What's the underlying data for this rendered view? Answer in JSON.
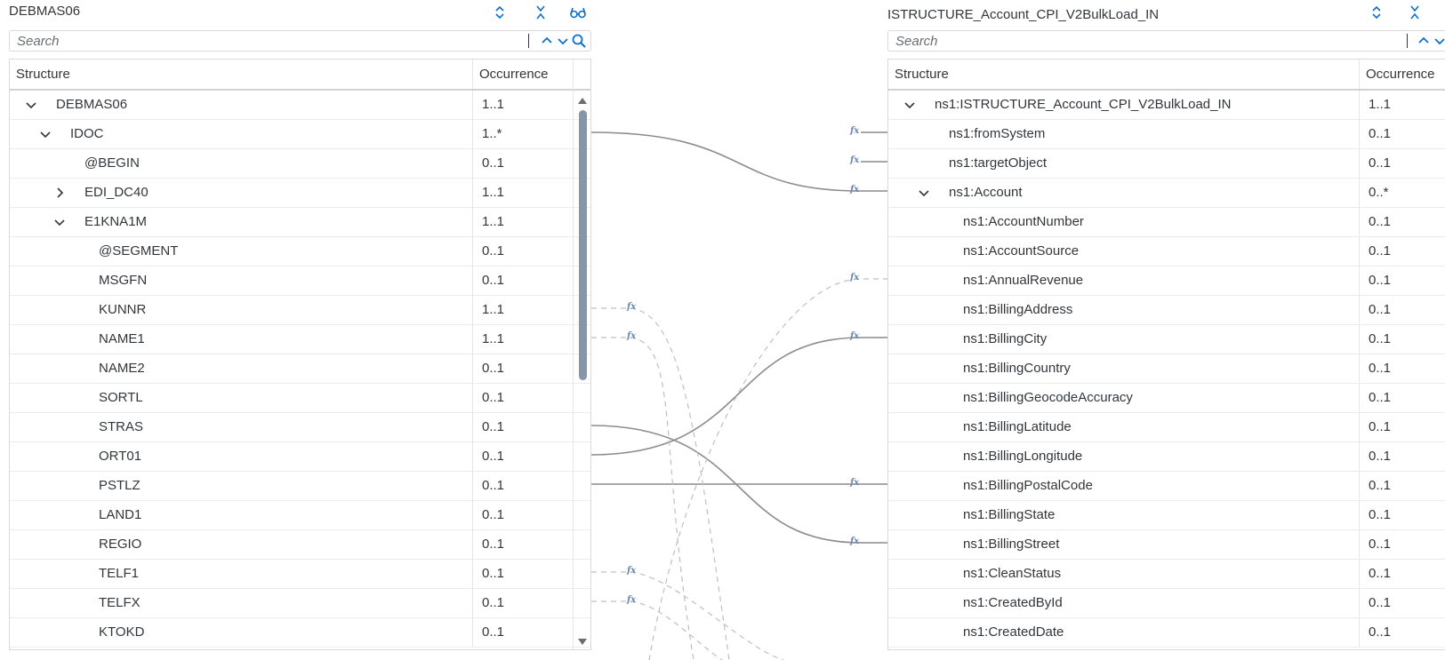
{
  "left": {
    "title": "DEBMAS06",
    "search_placeholder": "Search",
    "columns": {
      "structure": "Structure",
      "occurrence": "Occurrence"
    },
    "rows": [
      {
        "label": "DEBMAS06",
        "occ": "1..1",
        "level": 0,
        "chevron": "down"
      },
      {
        "label": "IDOC",
        "occ": "1..*",
        "level": 1,
        "chevron": "down"
      },
      {
        "label": "@BEGIN",
        "occ": "0..1",
        "level": 2,
        "chevron": ""
      },
      {
        "label": "EDI_DC40",
        "occ": "1..1",
        "level": 2,
        "chevron": "right"
      },
      {
        "label": "E1KNA1M",
        "occ": "1..1",
        "level": 2,
        "chevron": "down"
      },
      {
        "label": "@SEGMENT",
        "occ": "0..1",
        "level": 3,
        "chevron": ""
      },
      {
        "label": "MSGFN",
        "occ": "0..1",
        "level": 3,
        "chevron": ""
      },
      {
        "label": "KUNNR",
        "occ": "1..1",
        "level": 3,
        "chevron": ""
      },
      {
        "label": "NAME1",
        "occ": "1..1",
        "level": 3,
        "chevron": ""
      },
      {
        "label": "NAME2",
        "occ": "0..1",
        "level": 3,
        "chevron": ""
      },
      {
        "label": "SORTL",
        "occ": "0..1",
        "level": 3,
        "chevron": ""
      },
      {
        "label": "STRAS",
        "occ": "0..1",
        "level": 3,
        "chevron": ""
      },
      {
        "label": "ORT01",
        "occ": "0..1",
        "level": 3,
        "chevron": ""
      },
      {
        "label": "PSTLZ",
        "occ": "0..1",
        "level": 3,
        "chevron": ""
      },
      {
        "label": "LAND1",
        "occ": "0..1",
        "level": 3,
        "chevron": ""
      },
      {
        "label": "REGIO",
        "occ": "0..1",
        "level": 3,
        "chevron": ""
      },
      {
        "label": "TELF1",
        "occ": "0..1",
        "level": 3,
        "chevron": ""
      },
      {
        "label": "TELFX",
        "occ": "0..1",
        "level": 3,
        "chevron": ""
      },
      {
        "label": "KTOKD",
        "occ": "0..1",
        "level": 3,
        "chevron": ""
      }
    ]
  },
  "right": {
    "title": "ISTRUCTURE_Account_CPI_V2BulkLoad_IN",
    "search_placeholder": "Search",
    "columns": {
      "structure": "Structure",
      "occurrence": "Occurrence"
    },
    "rows": [
      {
        "label": "ns1:ISTRUCTURE_Account_CPI_V2BulkLoad_IN",
        "occ": "1..1",
        "level": 0,
        "chevron": "down"
      },
      {
        "label": "ns1:fromSystem",
        "occ": "0..1",
        "level": 1,
        "chevron": ""
      },
      {
        "label": "ns1:targetObject",
        "occ": "0..1",
        "level": 1,
        "chevron": ""
      },
      {
        "label": "ns1:Account",
        "occ": "0..*",
        "level": 1,
        "chevron": "down"
      },
      {
        "label": "ns1:AccountNumber",
        "occ": "0..1",
        "level": 2,
        "chevron": ""
      },
      {
        "label": "ns1:AccountSource",
        "occ": "0..1",
        "level": 2,
        "chevron": ""
      },
      {
        "label": "ns1:AnnualRevenue",
        "occ": "0..1",
        "level": 2,
        "chevron": ""
      },
      {
        "label": "ns1:BillingAddress",
        "occ": "0..1",
        "level": 2,
        "chevron": ""
      },
      {
        "label": "ns1:BillingCity",
        "occ": "0..1",
        "level": 2,
        "chevron": ""
      },
      {
        "label": "ns1:BillingCountry",
        "occ": "0..1",
        "level": 2,
        "chevron": ""
      },
      {
        "label": "ns1:BillingGeocodeAccuracy",
        "occ": "0..1",
        "level": 2,
        "chevron": ""
      },
      {
        "label": "ns1:BillingLatitude",
        "occ": "0..1",
        "level": 2,
        "chevron": ""
      },
      {
        "label": "ns1:BillingLongitude",
        "occ": "0..1",
        "level": 2,
        "chevron": ""
      },
      {
        "label": "ns1:BillingPostalCode",
        "occ": "0..1",
        "level": 2,
        "chevron": ""
      },
      {
        "label": "ns1:BillingState",
        "occ": "0..1",
        "level": 2,
        "chevron": ""
      },
      {
        "label": "ns1:BillingStreet",
        "occ": "0..1",
        "level": 2,
        "chevron": ""
      },
      {
        "label": "ns1:CleanStatus",
        "occ": "0..1",
        "level": 2,
        "chevron": ""
      },
      {
        "label": "ns1:CreatedById",
        "occ": "0..1",
        "level": 2,
        "chevron": ""
      },
      {
        "label": "ns1:CreatedDate",
        "occ": "0..1",
        "level": 2,
        "chevron": ""
      }
    ]
  },
  "function_glyph": "fx",
  "colors": {
    "accent": "#0a6ed1",
    "connector": "#8c8c8c",
    "scroll_thumb": "#8696a9"
  }
}
